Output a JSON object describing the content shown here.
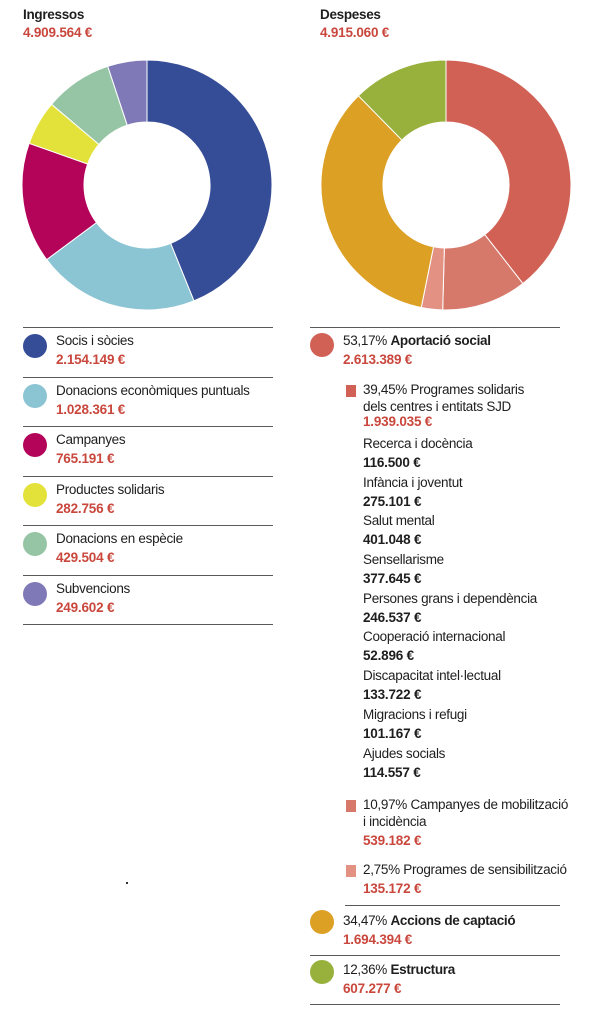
{
  "chart_data": [
    {
      "type": "pie",
      "title": "Ingressos",
      "total": "4.909.564 €",
      "slices": [
        {
          "name": "Socis i sòcies",
          "value": 2154149,
          "label": "2.154.149 €",
          "color": "#354c96"
        },
        {
          "name": "Donacions econòmiques puntuals",
          "value": 1028361,
          "label": "1.028.361 €",
          "color": "#8bc4d3"
        },
        {
          "name": "Campanyes",
          "value": 765191,
          "label": "765.191 €",
          "color": "#b4045a"
        },
        {
          "name": "Productes solidaris",
          "value": 282756,
          "label": "282.756 €",
          "color": "#e3e23a"
        },
        {
          "name": "Donacions en espècie",
          "value": 429504,
          "label": "429.504 €",
          "color": "#96c5a6"
        },
        {
          "name": "Subvencions",
          "value": 249602,
          "label": "249.602 €",
          "color": "#7f79b7"
        }
      ]
    },
    {
      "type": "pie",
      "title": "Despeses",
      "total": "4.915.060 €",
      "slices": [
        {
          "name": "Aportació social",
          "pct": "53,17%",
          "value": 2613389,
          "label": "2.613.389 €",
          "color": "#d16154",
          "sub": [
            {
              "name": "Programes solidaris dels centres i entitats SJD",
              "pct": "39,45%",
              "value": 1939035,
              "label": "1.939.035 €",
              "color": "#d16154"
            },
            {
              "name": "Campanyes de mobilització i incidència",
              "pct": "10,97%",
              "value": 539182,
              "label": "539.182 €",
              "color": "#d6786a"
            },
            {
              "name": "Programes de sensibilització",
              "pct": "2,75%",
              "value": 135172,
              "label": "135.172 €",
              "color": "#e29182"
            }
          ]
        },
        {
          "name": "Accions de captació",
          "pct": "34,47%",
          "value": 1694394,
          "label": "1.694.394 €",
          "color": "#dca024"
        },
        {
          "name": "Estructura",
          "pct": "12,36%",
          "value": 607277,
          "label": "607.277 €",
          "color": "#97b13c"
        }
      ]
    }
  ],
  "ingressos": {
    "title": "Ingressos",
    "total": "4.909.564 €",
    "items": [
      {
        "label": "Socis i sòcies",
        "value": "2.154.149 €",
        "color": "#354c96"
      },
      {
        "label": "Donacions econòmiques puntuals",
        "value": "1.028.361 €",
        "color": "#8bc4d3"
      },
      {
        "label": "Campanyes",
        "value": "765.191 €",
        "color": "#b4045a"
      },
      {
        "label": "Productes solidaris",
        "value": "282.756 €",
        "color": "#e3e23a"
      },
      {
        "label": "Donacions en espècie",
        "value": "429.504 €",
        "color": "#96c5a6"
      },
      {
        "label": "Subvencions",
        "value": "249.602 €",
        "color": "#7f79b7"
      }
    ]
  },
  "despeses": {
    "title": "Despeses",
    "total": "4.915.060 €",
    "aportacio": {
      "pct": "53,17%",
      "name": "Aportació social",
      "value": "2.613.389 €",
      "color": "#d16154"
    },
    "programes": {
      "pct": "39,45%",
      "name_line1": "Programes solidaris",
      "name_line2": "dels centres i entitats SJD",
      "value": "1.939.035 €",
      "color": "#d16154"
    },
    "details": [
      {
        "label": "Recerca i docència",
        "value": "116.500 €"
      },
      {
        "label": "Infància i joventut",
        "value": "275.101 €"
      },
      {
        "label": "Salut mental",
        "value": "401.048 €"
      },
      {
        "label": "Sensellarisme",
        "value": "377.645 €"
      },
      {
        "label": "Persones grans i dependència",
        "value": "246.537 €"
      },
      {
        "label": "Cooperació internacional",
        "value": "52.896 €"
      },
      {
        "label": "Discapacitat intel·lectual",
        "value": "133.722 €"
      },
      {
        "label": "Migracions i refugi",
        "value": "101.167 €"
      },
      {
        "label": "Ajudes socials",
        "value": "114.557 €"
      }
    ],
    "campanyes": {
      "pct": "10,97%",
      "name_line1": "Campanyes de mobilització",
      "name_line2": "i incidència",
      "value": "539.182 €",
      "color": "#d6786a"
    },
    "sensibilitzacio": {
      "pct": "2,75%",
      "name": "Programes de sensibilització",
      "value": "135.172 €",
      "color": "#e29182"
    },
    "captacio": {
      "pct": "34,47%",
      "name": "Accions de captació",
      "value": "1.694.394 €",
      "color": "#dca024"
    },
    "estructura": {
      "pct": "12,36%",
      "name": "Estructura",
      "value": "607.277 €",
      "color": "#97b13c"
    }
  }
}
